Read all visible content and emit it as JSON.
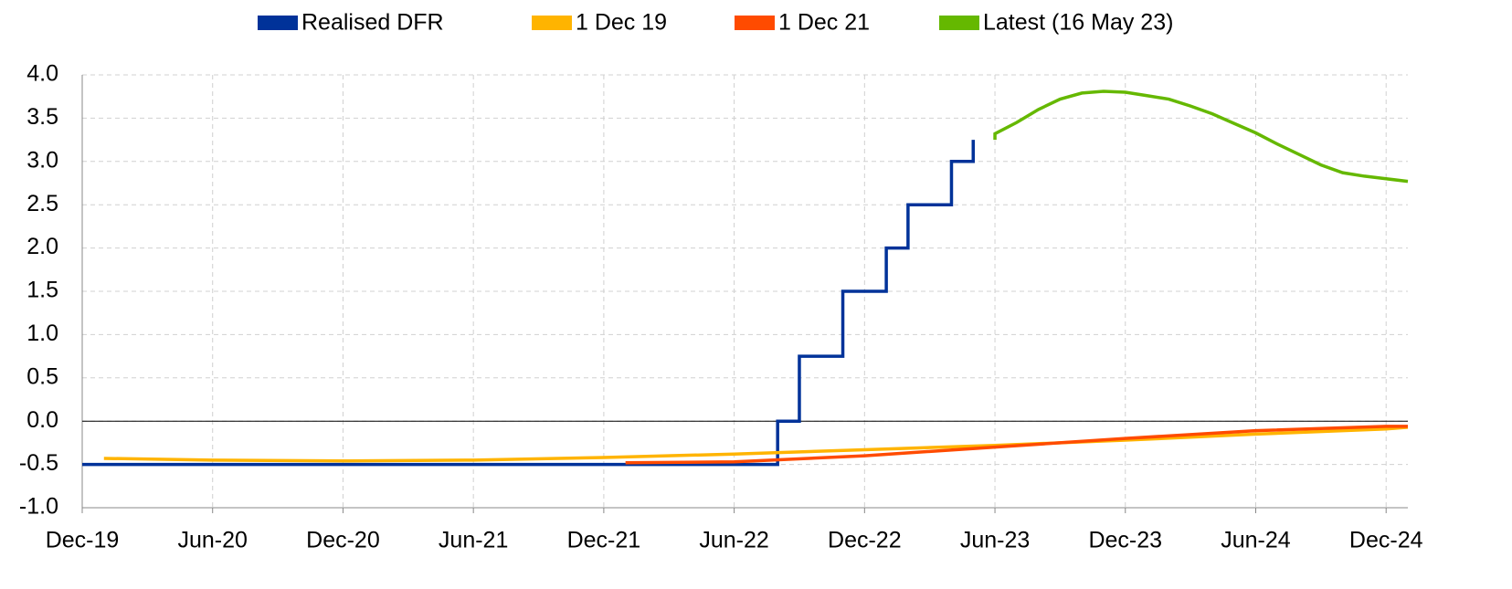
{
  "chart_data": {
    "type": "line",
    "legend_position": "top",
    "grid": true,
    "xlim": [
      "Dec-19",
      "Jan-25"
    ],
    "xticks": [
      "Dec-19",
      "Jun-20",
      "Dec-20",
      "Jun-21",
      "Dec-21",
      "Jun-22",
      "Dec-22",
      "Jun-23",
      "Dec-23",
      "Jun-24",
      "Dec-24"
    ],
    "ylim": [
      -1,
      4
    ],
    "yticks": [
      {
        "value": -1,
        "label": "-1.0"
      },
      -0.5,
      {
        "value": 0,
        "label": "0.0"
      },
      0.5,
      {
        "value": 1,
        "label": "1.0"
      },
      1.5,
      {
        "value": 2,
        "label": "2.0"
      },
      2.5,
      {
        "value": 3,
        "label": "3.0"
      },
      3.5,
      {
        "value": 4,
        "label": "4.0"
      }
    ],
    "series": [
      {
        "name": "Realised DFR",
        "color": "#003299",
        "x": [
          "Dec-19",
          "Aug-22",
          "Aug-22",
          "Sep-22",
          "Sep-22",
          "Nov-22",
          "Nov-22",
          "Jan-23",
          "Jan-23",
          "Feb-23",
          "Feb-23",
          "Apr-23",
          "Apr-23",
          "May-23",
          "May-23"
        ],
        "values": [
          -0.5,
          -0.5,
          0,
          0,
          0.75,
          0.75,
          1.5,
          1.5,
          2,
          2,
          2.5,
          2.5,
          3,
          3,
          3.25
        ]
      },
      {
        "name": "1 Dec 19",
        "color": "#FFB400",
        "x": [
          "Jan-20",
          "Jun-20",
          "Dec-20",
          "Jun-21",
          "Dec-21",
          "Jun-22",
          "Dec-22",
          "Jun-23",
          "Dec-23",
          "Jun-24",
          "Dec-24",
          "Jan-25"
        ],
        "values": [
          -0.43,
          -0.45,
          -0.46,
          -0.45,
          -0.42,
          -0.38,
          -0.33,
          -0.28,
          -0.22,
          -0.15,
          -0.09,
          -0.07
        ]
      },
      {
        "name": "1 Dec 21",
        "color": "#FF4B00",
        "x": [
          "Jan-22",
          "Jun-22",
          "Dec-22",
          "Jun-23",
          "Dec-23",
          "Jun-24",
          "Dec-24",
          "Jan-25"
        ],
        "values": [
          -0.48,
          -0.47,
          -0.4,
          -0.3,
          -0.2,
          -0.11,
          -0.06,
          -0.06
        ]
      },
      {
        "name": "Latest (16 May 23)",
        "color": "#65B800",
        "x": [
          "Jun-23",
          "Jun-23",
          "Jul-23",
          "Aug-23",
          "Sep-23",
          "Oct-23",
          "Nov-23",
          "Dec-23",
          "Jan-24",
          "Feb-24",
          "Mar-24",
          "Apr-24",
          "May-24",
          "Jun-24",
          "Jul-24",
          "Aug-24",
          "Sep-24",
          "Oct-24",
          "Nov-24",
          "Dec-24",
          "Jan-25"
        ],
        "values": [
          3.25,
          3.32,
          3.45,
          3.6,
          3.72,
          3.79,
          3.81,
          3.8,
          3.76,
          3.72,
          3.64,
          3.55,
          3.44,
          3.33,
          3.2,
          3.08,
          2.96,
          2.87,
          2.83,
          2.8,
          2.77
        ]
      }
    ]
  }
}
